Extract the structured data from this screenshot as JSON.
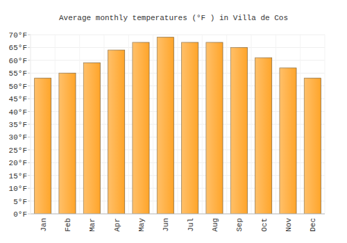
{
  "chart_data": {
    "type": "bar",
    "title": "Average monthly temperatures (°F ) in Villa de Cos",
    "categories": [
      "Jan",
      "Feb",
      "Mar",
      "Apr",
      "May",
      "Jun",
      "Jul",
      "Aug",
      "Sep",
      "Oct",
      "Nov",
      "Dec"
    ],
    "values": [
      53,
      55,
      59,
      64,
      67,
      69,
      67,
      67,
      65,
      61,
      57,
      53
    ],
    "color": "#ffa52a",
    "ylim": [
      0,
      70
    ],
    "yticks": [
      {
        "value": 0,
        "label": "0°F"
      },
      {
        "value": 5,
        "label": "5°F"
      },
      {
        "value": 10,
        "label": "10°F"
      },
      {
        "value": 15,
        "label": "15°F"
      },
      {
        "value": 20,
        "label": "20°F"
      },
      {
        "value": 25,
        "label": "25°F"
      },
      {
        "value": 30,
        "label": "30°F"
      },
      {
        "value": 35,
        "label": "35°F"
      },
      {
        "value": 40,
        "label": "40°F"
      },
      {
        "value": 45,
        "label": "45°F"
      },
      {
        "value": 50,
        "label": "50°F"
      },
      {
        "value": 55,
        "label": "55°F"
      },
      {
        "value": 60,
        "label": "60°F"
      },
      {
        "value": 65,
        "label": "65°F"
      },
      {
        "value": 70,
        "label": "70°F"
      }
    ],
    "grid": true
  }
}
